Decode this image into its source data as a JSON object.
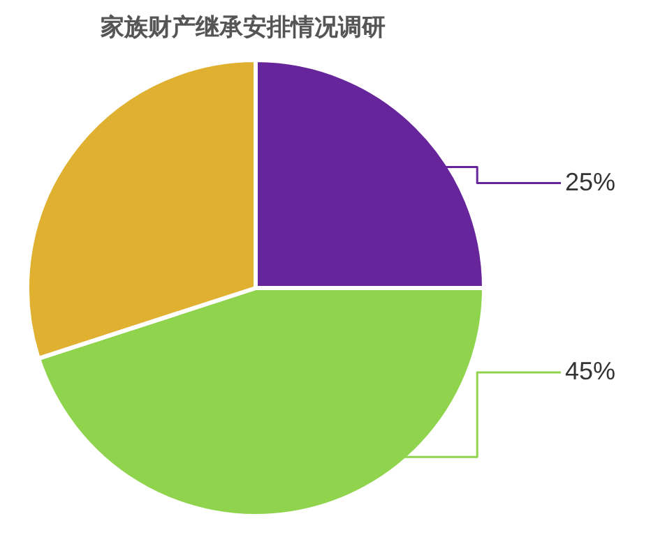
{
  "chart_data": {
    "type": "pie",
    "title": "家族财产继承安排情况调研",
    "categories": [
      null,
      null,
      null
    ],
    "values": [
      25,
      45,
      30
    ],
    "colors": [
      "#66259a",
      "#8fd44c",
      "#e0b030"
    ],
    "value_labels": [
      "25%",
      "45%",
      null
    ]
  }
}
